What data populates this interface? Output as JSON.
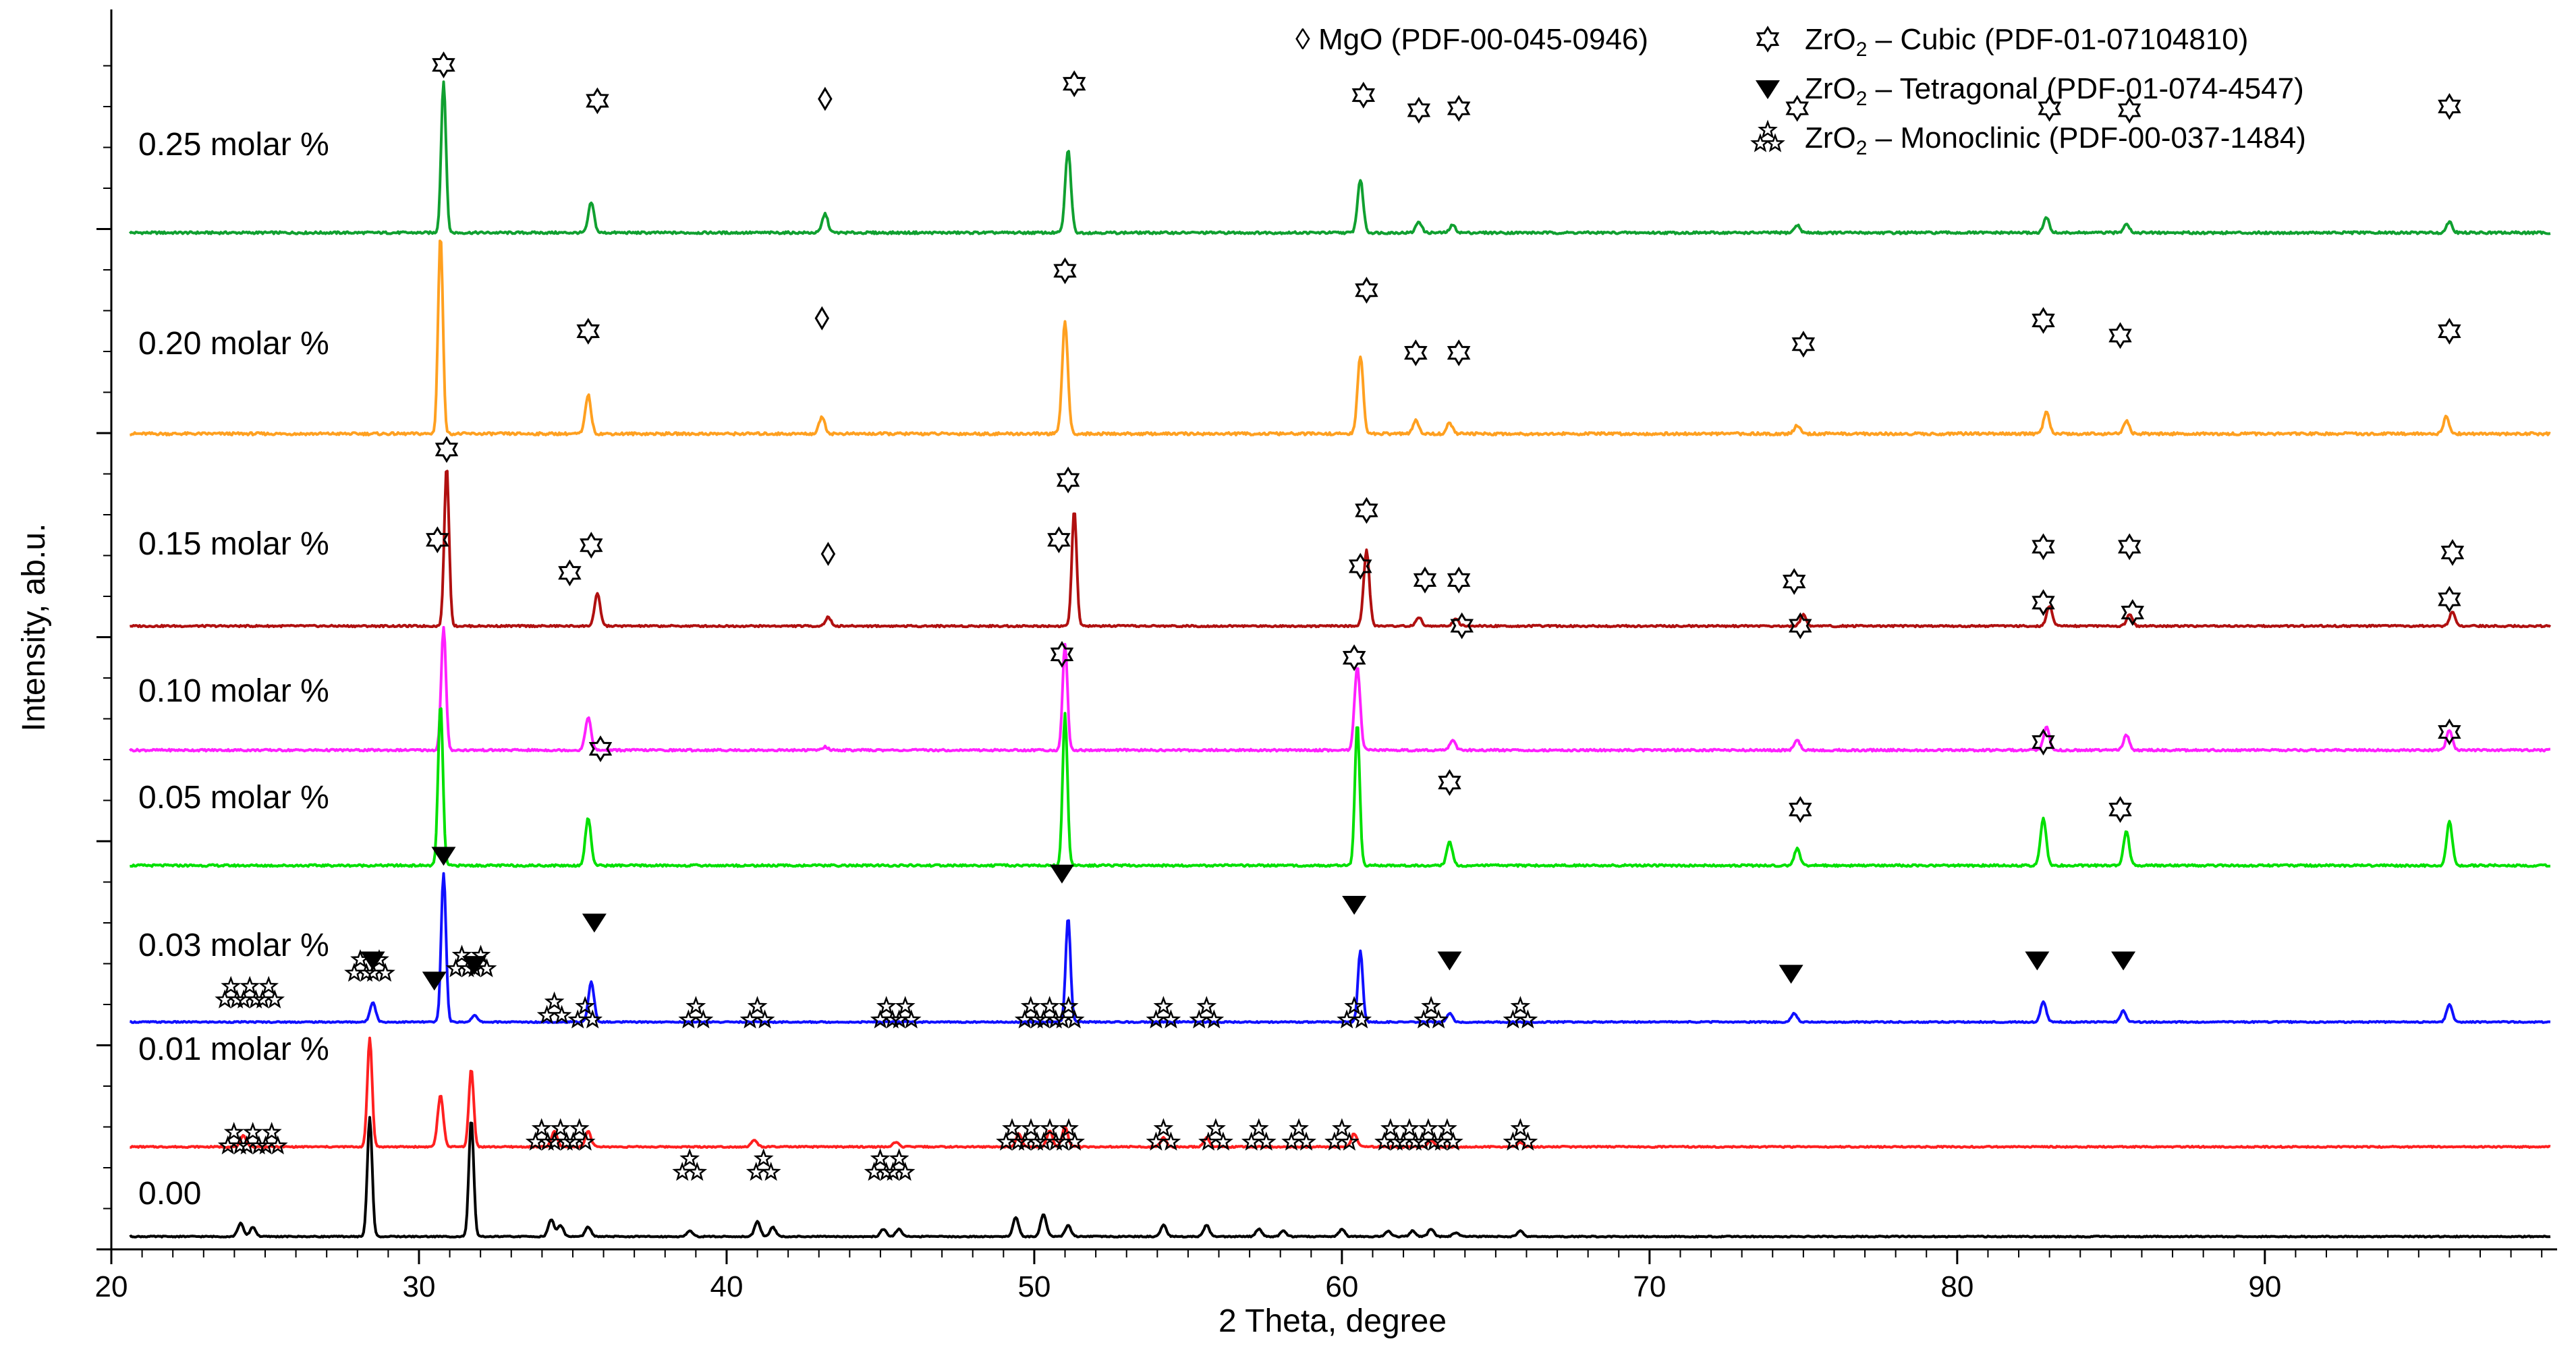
{
  "chart_data": {
    "type": "line",
    "title": "",
    "xlabel": "2 Theta, degree",
    "ylabel": "Intensity, ab.u.",
    "xlim": [
      20,
      99.5
    ],
    "xticks": [
      20,
      30,
      40,
      50,
      60,
      70,
      80,
      90
    ],
    "yticks_labeled": false,
    "colors": {
      "0.00": "#000000",
      "0.01": "#ff2020",
      "0.03": "#1010ff",
      "0.05": "#00e000",
      "0.10": "#ff20ff",
      "0.15": "#b01010",
      "0.20": "#ffa020",
      "0.25": "#10a030"
    },
    "legend": {
      "mgo": "◊ MgO (PDF-00-045-0946)",
      "cubic": {
        "symbol": "cubic",
        "pre": "ZrO",
        "sub": "2",
        "post": " – Cubic (PDF-01-07104810)"
      },
      "tetragonal": {
        "symbol": "tetragonal",
        "pre": "ZrO",
        "sub": "2",
        "post": " – Tetragonal (PDF-01-074-4547)"
      },
      "monoclinic": {
        "symbol": "monoclinic",
        "pre": "ZrO",
        "sub": "2",
        "post": " – Monoclinic (PDF-00-037-1484)"
      }
    },
    "series": [
      {
        "name": "0.25",
        "label": "0.25 molar %",
        "baseline": 0.22,
        "peaks": [
          [
            30.8,
            0.4
          ],
          [
            35.6,
            0.08
          ],
          [
            43.2,
            0.05
          ],
          [
            51.1,
            0.22
          ],
          [
            60.6,
            0.14
          ],
          [
            62.5,
            0.03
          ],
          [
            63.6,
            0.02
          ],
          [
            74.8,
            0.02
          ],
          [
            82.9,
            0.04
          ],
          [
            85.5,
            0.025
          ],
          [
            96.0,
            0.03
          ]
        ],
        "markers": [
          {
            "type": "cubic",
            "x": 30.8,
            "y": 0.43
          },
          {
            "type": "cubic",
            "x": 35.8,
            "y": 0.335
          },
          {
            "type": "mgo",
            "x": 43.2,
            "y": 0.34
          },
          {
            "type": "cubic",
            "x": 51.3,
            "y": 0.38
          },
          {
            "type": "cubic",
            "x": 60.7,
            "y": 0.35
          },
          {
            "type": "cubic",
            "x": 62.5,
            "y": 0.31
          },
          {
            "type": "cubic",
            "x": 63.8,
            "y": 0.315
          },
          {
            "type": "cubic",
            "x": 74.8,
            "y": 0.315
          },
          {
            "type": "cubic",
            "x": 83.0,
            "y": 0.315
          },
          {
            "type": "cubic",
            "x": 85.6,
            "y": 0.31
          },
          {
            "type": "cubic",
            "x": 96.0,
            "y": 0.32
          }
        ]
      },
      {
        "name": "0.20",
        "label": "0.20 molar %",
        "baseline": 0.185,
        "peaks": [
          [
            30.7,
            0.46
          ],
          [
            35.5,
            0.09
          ],
          [
            43.1,
            0.04
          ],
          [
            51.0,
            0.26
          ],
          [
            60.6,
            0.18
          ],
          [
            62.4,
            0.03
          ],
          [
            63.5,
            0.025
          ],
          [
            74.8,
            0.02
          ],
          [
            82.9,
            0.05
          ],
          [
            85.5,
            0.03
          ],
          [
            95.9,
            0.04
          ]
        ],
        "markers": [
          {
            "type": "cubic",
            "x": 51.0,
            "y": 0.365
          },
          {
            "type": "cubic",
            "x": 35.5,
            "y": 0.225
          },
          {
            "type": "mgo",
            "x": 43.1,
            "y": 0.255
          },
          {
            "type": "cubic",
            "x": 60.8,
            "y": 0.32
          },
          {
            "type": "cubic",
            "x": 62.4,
            "y": 0.175
          },
          {
            "type": "cubic",
            "x": 63.8,
            "y": 0.175
          },
          {
            "type": "cubic",
            "x": 75.0,
            "y": 0.195
          },
          {
            "type": "cubic",
            "x": 82.8,
            "y": 0.25
          },
          {
            "type": "cubic",
            "x": 85.3,
            "y": 0.215
          },
          {
            "type": "cubic",
            "x": 96.0,
            "y": 0.225
          }
        ]
      },
      {
        "name": "0.15",
        "label": "0.15 molar %",
        "baseline": 0.04,
        "peaks": [
          [
            30.9,
            0.55
          ],
          [
            35.8,
            0.11
          ],
          [
            43.3,
            0.03
          ],
          [
            51.3,
            0.4
          ],
          [
            60.8,
            0.26
          ],
          [
            62.5,
            0.03
          ],
          [
            63.7,
            0.025
          ],
          [
            75.0,
            0.04
          ],
          [
            83.0,
            0.07
          ],
          [
            85.6,
            0.04
          ],
          [
            96.1,
            0.05
          ]
        ],
        "markers": [
          {
            "type": "cubic",
            "x": 30.9,
            "y": 0.59
          },
          {
            "type": "cubic",
            "x": 35.6,
            "y": 0.26
          },
          {
            "type": "mgo",
            "x": 43.3,
            "y": 0.23
          },
          {
            "type": "cubic",
            "x": 51.1,
            "y": 0.485
          },
          {
            "type": "cubic",
            "x": 60.8,
            "y": 0.38
          },
          {
            "type": "cubic",
            "x": 62.7,
            "y": 0.14
          },
          {
            "type": "cubic",
            "x": 63.8,
            "y": 0.14
          },
          {
            "type": "cubic",
            "x": 74.7,
            "y": 0.135
          },
          {
            "type": "cubic",
            "x": 82.8,
            "y": 0.255
          },
          {
            "type": "cubic",
            "x": 85.6,
            "y": 0.255
          },
          {
            "type": "cubic",
            "x": 96.1,
            "y": 0.235
          }
        ]
      },
      {
        "name": "0.10",
        "label": "0.10 molar %",
        "baseline": 0.1,
        "peaks": [
          [
            30.8,
            0.37
          ],
          [
            35.5,
            0.1
          ],
          [
            43.2,
            0.01
          ],
          [
            51.0,
            0.32
          ],
          [
            60.5,
            0.25
          ],
          [
            63.6,
            0.03
          ],
          [
            74.8,
            0.03
          ],
          [
            82.9,
            0.07
          ],
          [
            85.5,
            0.045
          ],
          [
            96.0,
            0.06
          ]
        ],
        "markers": [
          {
            "type": "cubic",
            "x": 30.6,
            "y": 0.62
          },
          {
            "type": "cubic",
            "x": 34.9,
            "y": 0.52
          },
          {
            "type": "cubic",
            "x": 50.8,
            "y": 0.62
          },
          {
            "type": "cubic",
            "x": 60.6,
            "y": 0.54
          },
          {
            "type": "cubic",
            "x": 63.9,
            "y": 0.36
          },
          {
            "type": "cubic",
            "x": 74.9,
            "y": 0.36
          },
          {
            "type": "cubic",
            "x": 82.8,
            "y": 0.43
          },
          {
            "type": "cubic",
            "x": 85.7,
            "y": 0.4
          },
          {
            "type": "cubic",
            "x": 96.0,
            "y": 0.44
          }
        ]
      },
      {
        "name": "0.05",
        "label": "0.05 molar %",
        "baseline": 0.01,
        "peaks": [
          [
            30.7,
            0.48
          ],
          [
            35.5,
            0.14
          ],
          [
            51.0,
            0.45
          ],
          [
            60.5,
            0.42
          ],
          [
            63.5,
            0.07
          ],
          [
            74.8,
            0.05
          ],
          [
            82.8,
            0.14
          ],
          [
            85.5,
            0.1
          ],
          [
            96.0,
            0.13
          ]
        ],
        "markers": [
          {
            "type": "cubic",
            "x": 35.9,
            "y": 0.33
          },
          {
            "type": "cubic",
            "x": 50.9,
            "y": 0.61
          },
          {
            "type": "cubic",
            "x": 60.4,
            "y": 0.6
          },
          {
            "type": "cubic",
            "x": 63.5,
            "y": 0.23
          },
          {
            "type": "cubic",
            "x": 74.9,
            "y": 0.15
          },
          {
            "type": "cubic",
            "x": 82.8,
            "y": 0.35
          },
          {
            "type": "cubic",
            "x": 85.3,
            "y": 0.15
          },
          {
            "type": "cubic",
            "x": 96.0,
            "y": 0.38
          }
        ]
      },
      {
        "name": "0.03",
        "label": "0.03 molar %",
        "baseline": 0.05,
        "peaks": [
          [
            28.5,
            0.09
          ],
          [
            30.8,
            0.67
          ],
          [
            31.8,
            0.03
          ],
          [
            35.6,
            0.18
          ],
          [
            51.1,
            0.47
          ],
          [
            60.6,
            0.32
          ],
          [
            63.5,
            0.04
          ],
          [
            74.7,
            0.04
          ],
          [
            82.8,
            0.09
          ],
          [
            85.4,
            0.05
          ],
          [
            96.0,
            0.08
          ]
        ],
        "markers": [
          {
            "type": "tetragonal",
            "x": 28.5,
            "y": 0.25
          },
          {
            "type": "tetragonal",
            "x": 30.8,
            "y": 0.72
          },
          {
            "type": "tetragonal",
            "x": 31.8,
            "y": 0.23
          },
          {
            "type": "tetragonal",
            "x": 35.7,
            "y": 0.42
          },
          {
            "type": "tetragonal",
            "x": 50.9,
            "y": 0.64
          },
          {
            "type": "tetragonal",
            "x": 60.4,
            "y": 0.5
          },
          {
            "type": "tetragonal",
            "x": 63.5,
            "y": 0.25
          },
          {
            "type": "tetragonal",
            "x": 74.6,
            "y": 0.19
          },
          {
            "type": "tetragonal",
            "x": 82.6,
            "y": 0.25
          },
          {
            "type": "tetragonal",
            "x": 85.4,
            "y": 0.25
          }
        ]
      },
      {
        "name": "0.01",
        "label": "0.01 molar %",
        "baseline": 0.03,
        "peaks": [
          [
            24.3,
            0.05
          ],
          [
            28.4,
            0.49
          ],
          [
            30.7,
            0.23
          ],
          [
            31.7,
            0.35
          ],
          [
            34.4,
            0.07
          ],
          [
            35.5,
            0.07
          ],
          [
            40.9,
            0.03
          ],
          [
            45.5,
            0.02
          ],
          [
            49.5,
            0.06
          ],
          [
            50.5,
            0.07
          ],
          [
            51.0,
            0.09
          ],
          [
            54.2,
            0.04
          ],
          [
            55.6,
            0.04
          ],
          [
            60.4,
            0.06
          ],
          [
            62.9,
            0.03
          ],
          [
            65.8,
            0.02
          ]
        ],
        "markers": [
          {
            "type": "monoclinic",
            "x": 24.5,
            "y": 0.66,
            "count": 3
          },
          {
            "type": "monoclinic",
            "x": 28.4,
            "y": 0.78,
            "count": 2
          },
          {
            "type": "tetragonal",
            "x": 30.5,
            "y": 0.72
          },
          {
            "type": "monoclinic",
            "x": 31.7,
            "y": 0.8,
            "count": 2
          },
          {
            "type": "monoclinic",
            "x": 34.4,
            "y": 0.59,
            "count": 1
          },
          {
            "type": "monoclinic",
            "x": 35.4,
            "y": 0.57,
            "count": 1
          },
          {
            "type": "monoclinic",
            "x": 39.0,
            "y": 0.57,
            "count": 1
          },
          {
            "type": "monoclinic",
            "x": 41.0,
            "y": 0.57,
            "count": 1
          },
          {
            "type": "monoclinic",
            "x": 45.5,
            "y": 0.57,
            "count": 2
          },
          {
            "type": "monoclinic",
            "x": 50.5,
            "y": 0.57,
            "count": 3
          },
          {
            "type": "monoclinic",
            "x": 54.2,
            "y": 0.57,
            "count": 1
          },
          {
            "type": "monoclinic",
            "x": 55.6,
            "y": 0.57,
            "count": 1
          },
          {
            "type": "monoclinic",
            "x": 60.4,
            "y": 0.57,
            "count": 1
          },
          {
            "type": "monoclinic",
            "x": 62.9,
            "y": 0.57,
            "count": 1
          },
          {
            "type": "monoclinic",
            "x": 65.8,
            "y": 0.57,
            "count": 1
          }
        ]
      },
      {
        "name": "0.00",
        "label": "0.00",
        "baseline": 0.03,
        "peaks": [
          [
            24.2,
            0.07
          ],
          [
            24.6,
            0.05
          ],
          [
            28.4,
            0.63
          ],
          [
            31.7,
            0.62
          ],
          [
            34.3,
            0.09
          ],
          [
            34.6,
            0.06
          ],
          [
            35.5,
            0.05
          ],
          [
            38.8,
            0.03
          ],
          [
            41.0,
            0.08
          ],
          [
            41.5,
            0.05
          ],
          [
            45.1,
            0.04
          ],
          [
            45.6,
            0.04
          ],
          [
            49.4,
            0.1
          ],
          [
            50.3,
            0.12
          ],
          [
            51.1,
            0.06
          ],
          [
            54.2,
            0.06
          ],
          [
            55.6,
            0.06
          ],
          [
            57.3,
            0.04
          ],
          [
            58.1,
            0.03
          ],
          [
            60.0,
            0.04
          ],
          [
            61.5,
            0.03
          ],
          [
            62.3,
            0.03
          ],
          [
            62.9,
            0.04
          ],
          [
            63.7,
            0.02
          ],
          [
            65.8,
            0.03
          ]
        ],
        "markers": [
          {
            "type": "monoclinic",
            "x": 24.6,
            "y": 0.48,
            "count": 3
          },
          {
            "type": "monoclinic",
            "x": 34.6,
            "y": 0.5,
            "count": 3
          },
          {
            "type": "monoclinic",
            "x": 38.8,
            "y": 0.34,
            "count": 1
          },
          {
            "type": "monoclinic",
            "x": 41.2,
            "y": 0.34,
            "count": 1
          },
          {
            "type": "monoclinic",
            "x": 45.3,
            "y": 0.34,
            "count": 2
          },
          {
            "type": "monoclinic",
            "x": 50.2,
            "y": 0.5,
            "count": 4
          },
          {
            "type": "monoclinic",
            "x": 54.2,
            "y": 0.5,
            "count": 1
          },
          {
            "type": "monoclinic",
            "x": 55.9,
            "y": 0.5,
            "count": 1
          },
          {
            "type": "monoclinic",
            "x": 57.3,
            "y": 0.5,
            "count": 1
          },
          {
            "type": "monoclinic",
            "x": 58.6,
            "y": 0.5,
            "count": 1
          },
          {
            "type": "monoclinic",
            "x": 60.0,
            "y": 0.5,
            "count": 1
          },
          {
            "type": "monoclinic",
            "x": 62.5,
            "y": 0.5,
            "count": 4
          },
          {
            "type": "monoclinic",
            "x": 65.8,
            "y": 0.5,
            "count": 1
          }
        ]
      }
    ]
  }
}
